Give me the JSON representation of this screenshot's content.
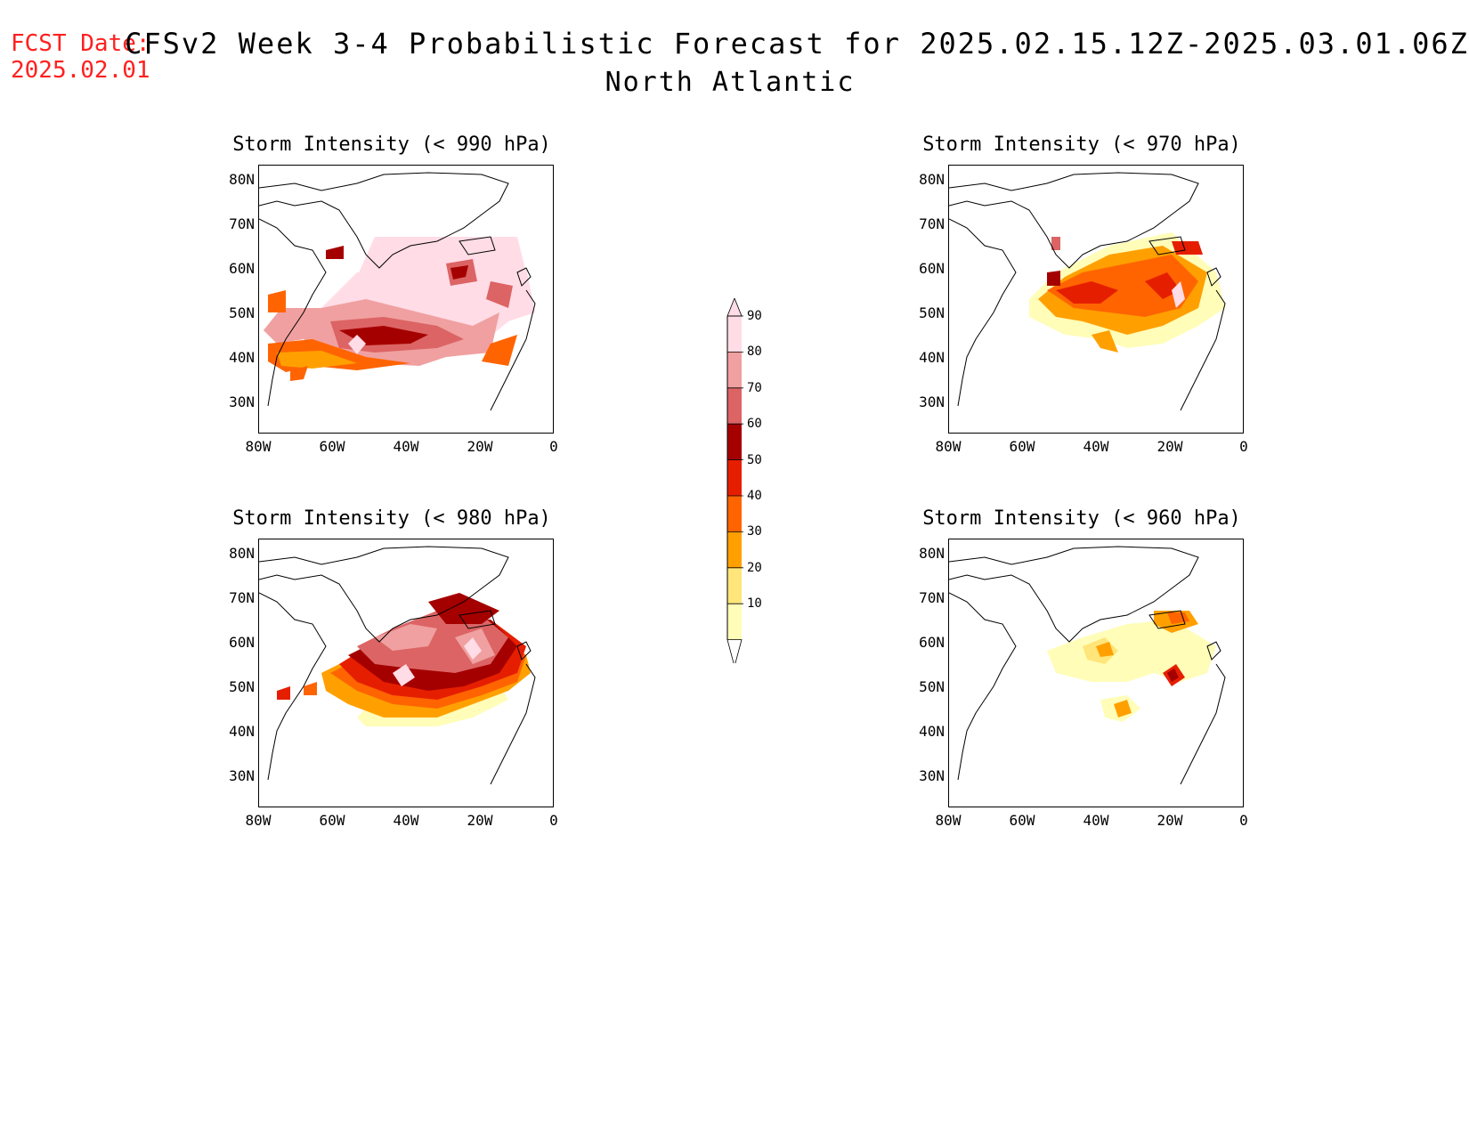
{
  "header": {
    "fcst_label": "FCST Date:",
    "fcst_date": "2025.02.01",
    "title": "CFSv2 Week 3-4 Probabilistic Forecast for 2025.02.15.12Z-2025.03.01.06Z",
    "region": "North Atlantic"
  },
  "panels": [
    {
      "title": "Storm Intensity (< 990 hPa)",
      "threshold_hPa": 990
    },
    {
      "title": "Storm Intensity (< 970 hPa)",
      "threshold_hPa": 970
    },
    {
      "title": "Storm Intensity (< 980 hPa)",
      "threshold_hPa": 980
    },
    {
      "title": "Storm Intensity (< 960 hPa)",
      "threshold_hPa": 960
    }
  ],
  "axes": {
    "lat_labels": [
      "80N",
      "70N",
      "60N",
      "50N",
      "40N",
      "30N"
    ],
    "lon_labels": [
      "80W",
      "60W",
      "40W",
      "20W",
      "0"
    ]
  },
  "colorbar": {
    "levels": [
      "10",
      "20",
      "30",
      "40",
      "50",
      "60",
      "70",
      "80",
      "90"
    ],
    "colors": [
      "#fffdb8",
      "#ffe57a",
      "#ffa000",
      "#ff6400",
      "#e61e00",
      "#a50000",
      "#dc6464",
      "#f0a0a0",
      "#ffdce6"
    ]
  }
}
